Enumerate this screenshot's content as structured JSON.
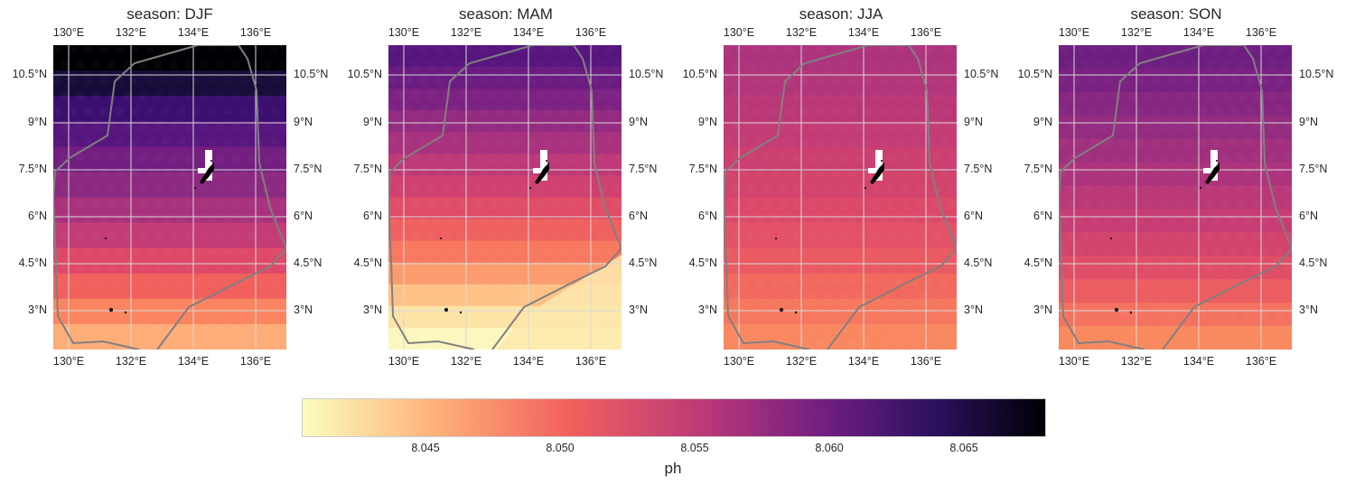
{
  "panels": [
    {
      "title": "season: DJF",
      "palette": [
        "#000004",
        "#170c3a",
        "#3b0f70",
        "#57157e",
        "#721f81",
        "#8c2981",
        "#a8327d",
        "#c43c75",
        "#de4968",
        "#f1605d",
        "#fa8560",
        "#fdad77"
      ]
    },
    {
      "title": "season: MAM",
      "palette": [
        "#57157e",
        "#6a1c81",
        "#7d2282",
        "#932b80",
        "#a8327d",
        "#bd3977",
        "#d0416f",
        "#e04d67",
        "#ef6160",
        "#f8795f",
        "#fc9b6d",
        "#fec287",
        "#fde4a6",
        "#fcf7bf"
      ]
    },
    {
      "title": "season: JJA",
      "palette": [
        "#ad347c",
        "#b4367a",
        "#bb3878",
        "#c43c75",
        "#cc3f71",
        "#d3446d",
        "#dc4869",
        "#e35266",
        "#ea5a62",
        "#f1695e",
        "#f6785e",
        "#f98861"
      ]
    },
    {
      "title": "season: SON",
      "palette": [
        "#6e1e81",
        "#7a2182",
        "#872681",
        "#942c80",
        "#a0307e",
        "#ad347c",
        "#ba3878",
        "#c73d73",
        "#d3446d",
        "#e04d67",
        "#ec5d61",
        "#f47360",
        "#f9895f"
      ]
    }
  ],
  "axes": {
    "lon_ticks": [
      "130°E",
      "132°E",
      "134°E",
      "136°E"
    ],
    "lat_ticks": [
      "10.5°N",
      "9°N",
      "7.5°N",
      "6°N",
      "4.5°N",
      "3°N"
    ]
  },
  "colorbar": {
    "ticks": [
      "8.045",
      "8.050",
      "8.055",
      "8.060",
      "8.065"
    ],
    "label": "ph"
  },
  "colors": {
    "grid": "#d9d9d9",
    "boundary": "#808080",
    "land": "#000000"
  }
}
